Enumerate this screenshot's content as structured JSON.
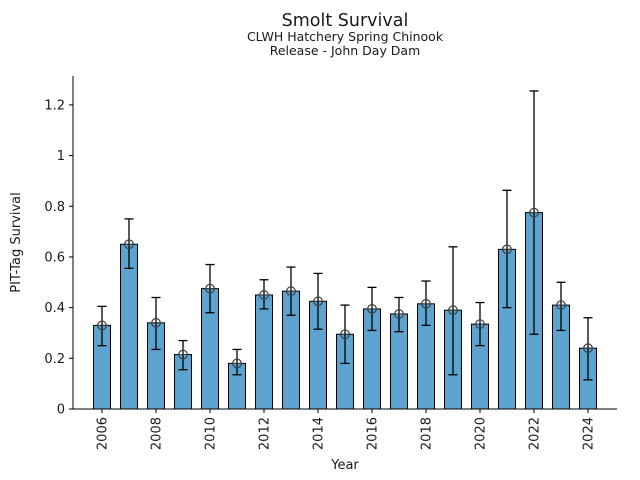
{
  "figure": {
    "title": "Smolt Survival",
    "subtitle_line1": "CLWH Hatchery Spring Chinook",
    "subtitle_line2": "Release - John Day Dam"
  },
  "chart_data": {
    "type": "bar",
    "title": "Smolt Survival",
    "subtitle": [
      "CLWH Hatchery Spring Chinook",
      "Release - John Day Dam"
    ],
    "xlabel": "Year",
    "ylabel": "PIT-Tag Survival",
    "categories": [
      2006,
      2007,
      2008,
      2009,
      2010,
      2011,
      2012,
      2013,
      2014,
      2015,
      2016,
      2017,
      2018,
      2019,
      2020,
      2021,
      2022,
      2023,
      2024
    ],
    "values": [
      0.33,
      0.65,
      0.34,
      0.215,
      0.475,
      0.18,
      0.45,
      0.465,
      0.425,
      0.295,
      0.395,
      0.375,
      0.415,
      0.39,
      0.335,
      0.63,
      0.775,
      0.41,
      0.24
    ],
    "error_low": [
      0.25,
      0.555,
      0.235,
      0.155,
      0.38,
      0.135,
      0.395,
      0.37,
      0.315,
      0.18,
      0.31,
      0.305,
      0.33,
      0.135,
      0.25,
      0.4,
      0.295,
      0.31,
      0.115
    ],
    "error_high": [
      0.405,
      0.75,
      0.44,
      0.27,
      0.57,
      0.235,
      0.51,
      0.56,
      0.535,
      0.41,
      0.48,
      0.44,
      0.505,
      0.64,
      0.42,
      0.863,
      1.255,
      0.5,
      0.36
    ],
    "yticks": [
      0,
      0.2,
      0.4,
      0.6,
      0.8,
      1,
      1.2
    ],
    "ytick_labels": [
      "0",
      "0.2",
      "0.4",
      "0.6",
      "0.8",
      "1",
      "1.2"
    ],
    "xtick_years": [
      2006,
      2008,
      2010,
      2012,
      2014,
      2016,
      2018,
      2020,
      2022,
      2024
    ],
    "ylim": [
      0,
      1.314
    ],
    "grid": false,
    "legend": null,
    "bar_color": "#5CA4CF",
    "bar_edge_color": "#000000",
    "error_color": "#000000",
    "marker": "circle-plus",
    "marker_color": "#3d3d3d",
    "background": "#ffffff"
  }
}
